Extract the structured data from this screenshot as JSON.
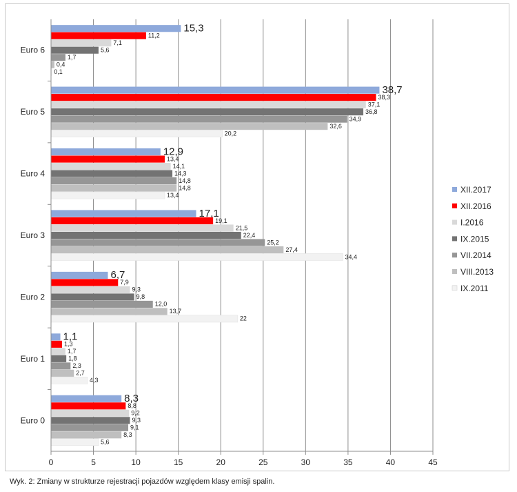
{
  "caption": "Wyk. 2: Zmiany w strukturze rejestracji pojazdów względem klasy emisji spalin.",
  "chart_data": {
    "type": "bar",
    "orientation": "horizontal",
    "categories": [
      "Euro 6",
      "Euro 5",
      "Euro 4",
      "Euro 3",
      "Euro 2",
      "Euro 1",
      "Euro 0"
    ],
    "series": [
      {
        "name": "XII.2017",
        "color": "#8ea9db",
        "values": [
          15.3,
          38.7,
          12.9,
          17.1,
          6.7,
          1.1,
          8.3
        ],
        "labels": [
          "15,3",
          "38,7",
          "12,9",
          "17,1",
          "6,7",
          "1,1",
          "8,3"
        ]
      },
      {
        "name": "XII.2016",
        "color": "#ff0000",
        "values": [
          11.2,
          38.3,
          13.4,
          19.1,
          7.9,
          1.3,
          8.8
        ],
        "labels": [
          "11,2",
          "38,3",
          "13,4",
          "19,1",
          "7,9",
          "1,3",
          "8,8"
        ]
      },
      {
        "name": "I.2016",
        "color": "#d9d9d9",
        "values": [
          7.1,
          37.1,
          14.1,
          21.5,
          9.3,
          1.7,
          9.2
        ],
        "labels": [
          "7,1",
          "37,1",
          "14,1",
          "21,5",
          "9,3",
          "1,7",
          "9,2"
        ]
      },
      {
        "name": "IX.2015",
        "color": "#737373",
        "values": [
          5.6,
          36.8,
          14.3,
          22.4,
          9.8,
          1.8,
          9.3
        ],
        "labels": [
          "5,6",
          "36,8",
          "14,3",
          "22,4",
          "9,8",
          "1,8",
          "9,3"
        ]
      },
      {
        "name": "VII.2014",
        "color": "#969696",
        "values": [
          1.7,
          34.9,
          14.8,
          25.2,
          12.0,
          2.3,
          9.1
        ],
        "labels": [
          "1,7",
          "34,9",
          "14,8",
          "25,2",
          "12,0",
          "2,3",
          "9,1"
        ]
      },
      {
        "name": "VIII.2013",
        "color": "#bfbfbf",
        "values": [
          0.4,
          32.6,
          14.8,
          27.4,
          13.7,
          2.7,
          8.3
        ],
        "labels": [
          "0,4",
          "32,6",
          "14,8",
          "27,4",
          "13,7",
          "2,7",
          "8,3"
        ]
      },
      {
        "name": "IX.2011",
        "color": "#f2f2f2",
        "values": [
          0.1,
          20.2,
          13.4,
          34.4,
          22,
          4.3,
          5.6
        ],
        "labels": [
          "0,1",
          "20,2",
          "13,4",
          "34,4",
          "22",
          "4,3",
          "5,6"
        ]
      }
    ],
    "xlim": [
      0,
      45
    ],
    "xticks": [
      0,
      5,
      10,
      15,
      20,
      25,
      30,
      35,
      40,
      45
    ],
    "grid": true,
    "legend_position": "right"
  }
}
